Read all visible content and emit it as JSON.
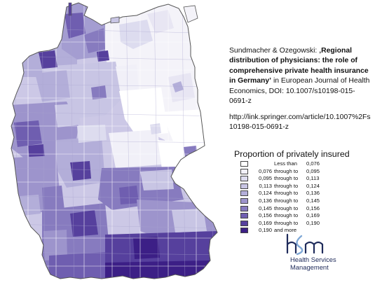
{
  "citation": {
    "authors": "Sundmacher & Ozegowski: ",
    "title": "‚Regional distribution of physicians: the role of comprehensive private health insurance in Germany’",
    "rest": " in European Journal of Health Economics, DOI: 10.1007/s10198-015-0691-z"
  },
  "url": "http://link.springer.com/article/10.1007%2Fs10198-015-0691-z",
  "legend": {
    "title": "Proportion of privately insured",
    "items": [
      {
        "low": "",
        "mid": "Less than",
        "high": "0,076",
        "color": "#ffffff"
      },
      {
        "low": "0,076",
        "mid": "through to",
        "high": "0,095",
        "color": "#f1f0f8"
      },
      {
        "low": "0,095",
        "mid": "through to",
        "high": "0,113",
        "color": "#dddcef"
      },
      {
        "low": "0,113",
        "mid": "through to",
        "high": "0,124",
        "color": "#c8c5e4"
      },
      {
        "low": "0,124",
        "mid": "through to",
        "high": "0,136",
        "color": "#b3aed9"
      },
      {
        "low": "0,136",
        "mid": "through to",
        "high": "0,145",
        "color": "#9d94cc"
      },
      {
        "low": "0,145",
        "mid": "through to",
        "high": "0,156",
        "color": "#877bbf"
      },
      {
        "low": "0,156",
        "mid": "through to",
        "high": "0,169",
        "color": "#6f5eb0"
      },
      {
        "low": "0,169",
        "mid": "through to",
        "high": "0,190",
        "color": "#56409d"
      },
      {
        "low": "0,190",
        "mid": "and more",
        "high": "",
        "color": "#3c1f86"
      }
    ]
  },
  "logo": {
    "mark": "hsm",
    "line1": "Health Services",
    "line2": "Management",
    "color": "#1e2a5a"
  }
}
